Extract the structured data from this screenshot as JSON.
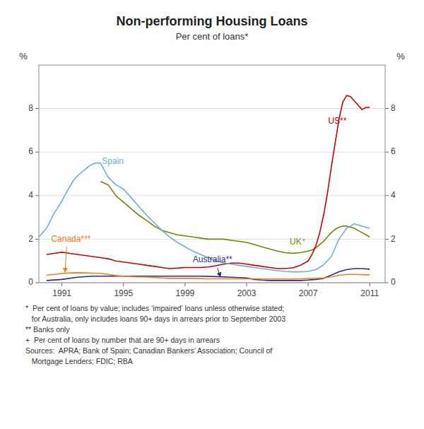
{
  "chart_data": {
    "type": "line",
    "title": "Non-performing Housing Loans",
    "subtitle": "Per cent of loans*",
    "ylabel": "%",
    "y2label": "%",
    "xlim": [
      1989.5,
      2012.0
    ],
    "ylim": [
      0,
      10
    ],
    "yticks": [
      0,
      2,
      4,
      6,
      8
    ],
    "y2lim": [
      0,
      10
    ],
    "y2ticks": [
      0,
      2,
      4,
      6,
      8
    ],
    "xticks": [
      1991,
      1995,
      1999,
      2003,
      2007,
      2011
    ],
    "grid": true,
    "footnotes": [
      "*  Per cent of loans by value; includes ‘impaired’ loans unless otherwise stated;",
      "   for Australia, only includes loans 90+ days in arrears prior to September 2003",
      "** Banks only",
      "+  Per cent of loans by number that are 90+ days in arrears",
      "Sources:  APRA; Bank of Spain; Canadian Bankers’ Association; Council of",
      "   Mortgage Lenders; FDIC; RBA"
    ],
    "series": [
      {
        "name": "Australia**",
        "color": "#2b2b8c",
        "x": [
          1990.0,
          1991.0,
          1992.0,
          1993.0,
          1994.0,
          1995.0,
          1996.0,
          1997.0,
          1998.0,
          1999.0,
          2000.0,
          2001.0,
          2002.0,
          2003.0,
          2003.5,
          2004.0,
          2004.5,
          2005.0,
          2005.5,
          2006.0,
          2006.5,
          2007.0,
          2007.5,
          2008.0,
          2008.5,
          2009.0,
          2009.5,
          2010.0,
          2010.5,
          2011.0
        ],
        "values": [
          0.1,
          0.15,
          0.25,
          0.3,
          0.3,
          0.3,
          0.3,
          0.3,
          0.3,
          0.3,
          0.3,
          0.28,
          0.25,
          0.22,
          0.15,
          0.12,
          0.1,
          0.1,
          0.1,
          0.1,
          0.1,
          0.12,
          0.15,
          0.2,
          0.35,
          0.5,
          0.6,
          0.65,
          0.65,
          0.62
        ]
      },
      {
        "name": "Canada***",
        "color": "#f97c1a",
        "x": [
          1990.0,
          1990.5,
          1991.0,
          1991.5,
          1992.0,
          1992.5,
          1993.0,
          1993.5,
          1994.0,
          1994.5,
          1995.0,
          1995.5,
          1996.0,
          1996.5,
          1997.0,
          1997.5,
          1998.0,
          1998.5,
          1999.0,
          1999.5,
          2000.0,
          2000.5,
          2001.0,
          2001.5,
          2002.0,
          2002.5,
          2003.0,
          2003.5,
          2004.0,
          2004.5,
          2005.0,
          2005.5,
          2006.0,
          2006.5,
          2007.0,
          2007.5,
          2008.0,
          2008.5,
          2009.0,
          2009.5,
          2010.0,
          2010.5,
          2011.0
        ],
        "values": [
          0.35,
          0.38,
          0.42,
          0.45,
          0.46,
          0.45,
          0.44,
          0.43,
          0.38,
          0.33,
          0.3,
          0.28,
          0.27,
          0.26,
          0.24,
          0.22,
          0.2,
          0.2,
          0.2,
          0.2,
          0.19,
          0.18,
          0.18,
          0.18,
          0.18,
          0.18,
          0.18,
          0.18,
          0.17,
          0.17,
          0.17,
          0.17,
          0.17,
          0.18,
          0.19,
          0.2,
          0.22,
          0.27,
          0.34,
          0.38,
          0.38,
          0.37,
          0.36
        ]
      },
      {
        "name": "UK⁺",
        "color": "#808000",
        "x": [
          1993.5,
          1994.0,
          1994.5,
          1995.0,
          1995.5,
          1996.0,
          1996.5,
          1997.0,
          1997.5,
          1998.0,
          1998.5,
          1999.0,
          1999.5,
          2000.0,
          2000.5,
          2001.0,
          2001.5,
          2002.0,
          2002.5,
          2003.0,
          2003.5,
          2004.0,
          2004.5,
          2005.0,
          2005.5,
          2006.0,
          2006.5,
          2007.0,
          2007.25,
          2007.5,
          2007.75,
          2008.0,
          2008.25,
          2008.5,
          2008.75,
          2009.0,
          2009.25,
          2009.5,
          2009.75,
          2010.0,
          2010.25,
          2010.5,
          2010.75,
          2011.0
        ],
        "values": [
          4.65,
          4.5,
          4.0,
          3.7,
          3.4,
          3.1,
          2.85,
          2.6,
          2.4,
          2.3,
          2.2,
          2.15,
          2.1,
          2.05,
          2.0,
          2.0,
          2.0,
          1.95,
          1.9,
          1.85,
          1.75,
          1.65,
          1.55,
          1.45,
          1.38,
          1.35,
          1.38,
          1.45,
          1.5,
          1.6,
          1.75,
          1.9,
          2.1,
          2.3,
          2.45,
          2.55,
          2.6,
          2.6,
          2.55,
          2.5,
          2.4,
          2.3,
          2.2,
          2.1
        ]
      },
      {
        "name": "US**",
        "color": "#cc0000",
        "x": [
          1990.0,
          1990.5,
          1991.0,
          1991.5,
          1992.0,
          1992.5,
          1993.0,
          1993.5,
          1994.0,
          1994.5,
          1995.0,
          1995.5,
          1996.0,
          1996.5,
          1997.0,
          1997.5,
          1998.0,
          1998.5,
          1999.0,
          1999.5,
          2000.0,
          2000.5,
          2001.0,
          2001.5,
          2002.0,
          2002.5,
          2003.0,
          2003.5,
          2004.0,
          2004.5,
          2005.0,
          2005.5,
          2006.0,
          2006.5,
          2007.0,
          2007.25,
          2007.5,
          2007.75,
          2008.0,
          2008.25,
          2008.5,
          2008.75,
          2009.0,
          2009.25,
          2009.5,
          2009.75,
          2010.0,
          2010.25,
          2010.5,
          2010.75,
          2011.0
        ],
        "values": [
          1.3,
          1.35,
          1.4,
          1.35,
          1.3,
          1.25,
          1.2,
          1.15,
          1.1,
          1.0,
          0.95,
          0.9,
          0.85,
          0.8,
          0.75,
          0.7,
          0.65,
          0.67,
          0.7,
          0.7,
          0.7,
          0.72,
          0.78,
          0.85,
          0.9,
          0.9,
          0.85,
          0.8,
          0.75,
          0.7,
          0.65,
          0.65,
          0.68,
          0.8,
          1.0,
          1.3,
          1.7,
          2.3,
          3.1,
          4.1,
          5.3,
          6.4,
          7.5,
          8.3,
          8.6,
          8.55,
          8.35,
          8.15,
          7.95,
          8.05,
          8.05
        ]
      },
      {
        "name": "Spain",
        "color": "#6baed6",
        "x": [
          1989.5,
          1990.0,
          1990.5,
          1991.0,
          1991.25,
          1991.5,
          1991.75,
          1992.0,
          1992.25,
          1992.5,
          1992.75,
          1993.0,
          1993.25,
          1993.5,
          1994.0,
          1994.5,
          1995.0,
          1995.5,
          1996.0,
          1996.5,
          1997.0,
          1997.5,
          1998.0,
          1998.5,
          1999.0,
          1999.5,
          2000.0,
          2000.5,
          2001.0,
          2001.5,
          2002.0,
          2002.5,
          2003.0,
          2003.5,
          2004.0,
          2004.5,
          2005.0,
          2005.5,
          2006.0,
          2006.5,
          2007.0,
          2007.5,
          2008.0,
          2008.5,
          2009.0,
          2009.5,
          2010.0,
          2010.5,
          2011.0
        ],
        "values": [
          2.1,
          2.5,
          3.2,
          3.75,
          4.1,
          4.4,
          4.7,
          4.9,
          5.05,
          5.2,
          5.35,
          5.45,
          5.5,
          5.5,
          4.85,
          4.5,
          4.3,
          3.9,
          3.5,
          3.1,
          2.75,
          2.4,
          2.1,
          1.85,
          1.65,
          1.45,
          1.3,
          1.15,
          1.0,
          0.92,
          0.85,
          0.8,
          0.75,
          0.7,
          0.65,
          0.6,
          0.55,
          0.52,
          0.5,
          0.5,
          0.52,
          0.6,
          0.82,
          1.2,
          2.0,
          2.5,
          2.7,
          2.6,
          2.5
        ]
      }
    ],
    "annotations": [
      {
        "text": "Spain",
        "color": "#6baed6",
        "x": 1993.6,
        "y": 5.35
      },
      {
        "text": "UK⁺",
        "color": "#808000",
        "x": 2005.8,
        "y": 1.65
      },
      {
        "text": "US**",
        "color": "#cc0000",
        "x": 2008.3,
        "y": 7.2
      },
      {
        "text": "Canada***",
        "color": "#f97c1a",
        "x": 1990.3,
        "y": 1.8,
        "arrow": [
          [
            1991.3,
            1.65
          ],
          [
            1991.2,
            0.48
          ]
        ]
      },
      {
        "text": "Australia**",
        "color": "#2b2b8c",
        "x": 1999.5,
        "y": 0.83,
        "arrow": [
          [
            2001.1,
            0.68
          ],
          [
            2001.3,
            0.27
          ]
        ]
      }
    ]
  }
}
